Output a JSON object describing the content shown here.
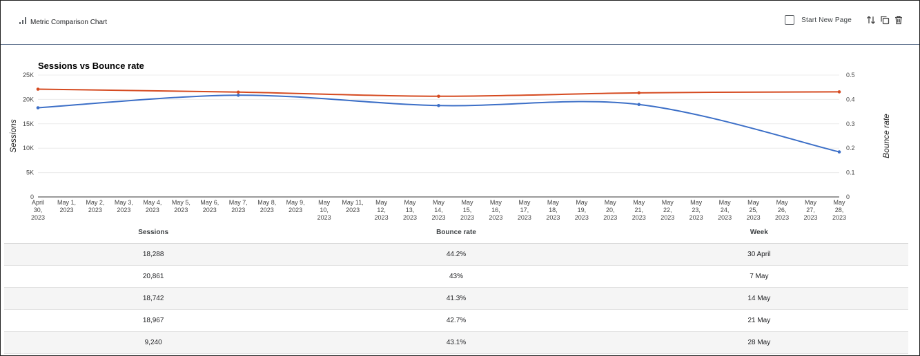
{
  "header": {
    "title": "Metric Comparison Chart",
    "start_new_page_label": "Start New Page",
    "icons": [
      "bar-chart-icon",
      "sort-icon",
      "copy-icon",
      "delete-icon"
    ]
  },
  "chart_data": {
    "type": "line",
    "title": "Sessions vs Bounce rate",
    "x": [
      "April 30, 2023",
      "May 1, 2023",
      "May 2, 2023",
      "May 3, 2023",
      "May 4, 2023",
      "May 5, 2023",
      "May 6, 2023",
      "May 7, 2023",
      "May 8, 2023",
      "May 9, 2023",
      "May 10, 2023",
      "May 11, 2023",
      "May 12, 2023",
      "May 13, 2023",
      "May 14, 2023",
      "May 15, 2023",
      "May 16, 2023",
      "May 17, 2023",
      "May 18, 2023",
      "May 19, 2023",
      "May 20, 2023",
      "May 21, 2023",
      "May 22, 2023",
      "May 23, 2023",
      "May 24, 2023",
      "May 25, 2023",
      "May 26, 2023",
      "May 27, 2023",
      "May 28, 2023"
    ],
    "x_tick_lines": [
      [
        "April",
        "30,",
        "2023"
      ],
      [
        "May 1,",
        "2023"
      ],
      [
        "May 2,",
        "2023"
      ],
      [
        "May 3,",
        "2023"
      ],
      [
        "May 4,",
        "2023"
      ],
      [
        "May 5,",
        "2023"
      ],
      [
        "May 6,",
        "2023"
      ],
      [
        "May 7,",
        "2023"
      ],
      [
        "May 8,",
        "2023"
      ],
      [
        "May 9,",
        "2023"
      ],
      [
        "May",
        "10,",
        "2023"
      ],
      [
        "May 11,",
        "2023"
      ],
      [
        "May",
        "12,",
        "2023"
      ],
      [
        "May",
        "13,",
        "2023"
      ],
      [
        "May",
        "14,",
        "2023"
      ],
      [
        "May",
        "15,",
        "2023"
      ],
      [
        "May",
        "16,",
        "2023"
      ],
      [
        "May",
        "17,",
        "2023"
      ],
      [
        "May",
        "18,",
        "2023"
      ],
      [
        "May",
        "19,",
        "2023"
      ],
      [
        "May",
        "20,",
        "2023"
      ],
      [
        "May",
        "21,",
        "2023"
      ],
      [
        "May",
        "22,",
        "2023"
      ],
      [
        "May",
        "23,",
        "2023"
      ],
      [
        "May",
        "24,",
        "2023"
      ],
      [
        "May",
        "25,",
        "2023"
      ],
      [
        "May",
        "26,",
        "2023"
      ],
      [
        "May",
        "27,",
        "2023"
      ],
      [
        "May",
        "28,",
        "2023"
      ]
    ],
    "series": [
      {
        "name": "Sessions",
        "axis": "left",
        "color": "#3c6fc7",
        "points": [
          [
            0,
            18288
          ],
          [
            7,
            20861
          ],
          [
            14,
            18742
          ],
          [
            21,
            18967
          ],
          [
            28,
            9240
          ]
        ]
      },
      {
        "name": "Bounce rate",
        "axis": "right",
        "color": "#d54a20",
        "points": [
          [
            0,
            0.442
          ],
          [
            7,
            0.43
          ],
          [
            14,
            0.413
          ],
          [
            21,
            0.427
          ],
          [
            28,
            0.431
          ]
        ]
      }
    ],
    "ylabel": "Sessions",
    "y2label": "Bounce rate",
    "ylim": [
      0,
      25000
    ],
    "y2lim": [
      0,
      0.5
    ],
    "yticks": [
      "0",
      "5K",
      "10K",
      "15K",
      "20K",
      "25K"
    ],
    "y2ticks": [
      "0",
      "0.1",
      "0.2",
      "0.3",
      "0.4",
      "0.5"
    ],
    "grid": true
  },
  "table": {
    "headers": [
      "Sessions",
      "Bounce rate",
      "Week"
    ],
    "rows": [
      [
        "18,288",
        "44.2%",
        "30 April"
      ],
      [
        "20,861",
        "43%",
        "7 May"
      ],
      [
        "18,742",
        "41.3%",
        "14 May"
      ],
      [
        "18,967",
        "42.7%",
        "21 May"
      ],
      [
        "9,240",
        "43.1%",
        "28 May"
      ]
    ]
  }
}
